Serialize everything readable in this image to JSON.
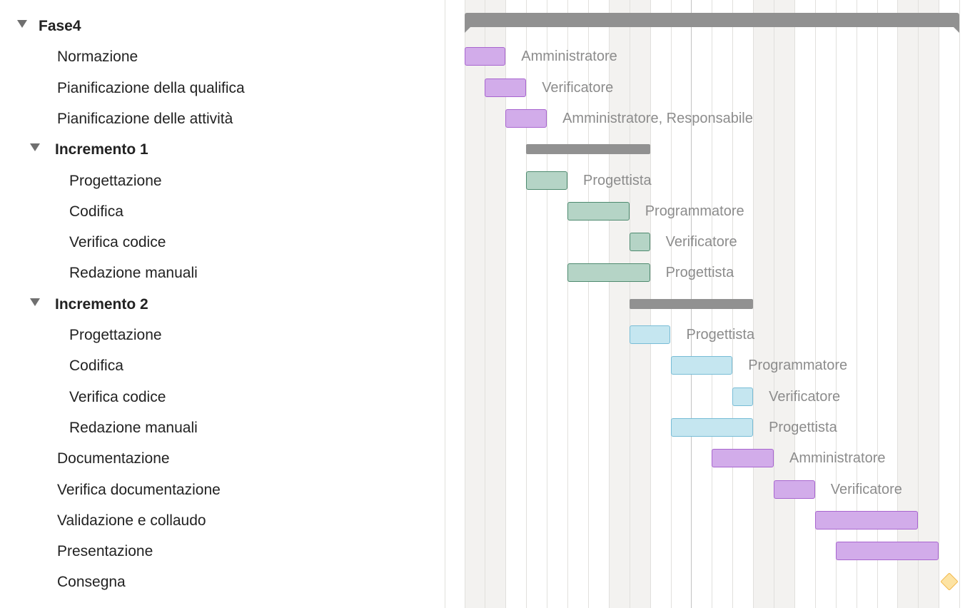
{
  "rows": [
    {
      "name": "Fase4",
      "level": 0,
      "group": true,
      "expanded": true
    },
    {
      "name": "Normazione",
      "level": 1,
      "group": false
    },
    {
      "name": "Pianificazione della qualifica",
      "level": 1,
      "group": false
    },
    {
      "name": "Pianificazione delle attività",
      "level": 1,
      "group": false
    },
    {
      "name": "Incremento 1",
      "level": 1,
      "group": true,
      "expanded": true
    },
    {
      "name": "Progettazione",
      "level": 2,
      "group": false
    },
    {
      "name": "Codifica",
      "level": 2,
      "group": false
    },
    {
      "name": "Verifica codice",
      "level": 2,
      "group": false
    },
    {
      "name": "Redazione manuali",
      "level": 2,
      "group": false
    },
    {
      "name": "Incremento 2",
      "level": 1,
      "group": true,
      "expanded": true
    },
    {
      "name": "Progettazione",
      "level": 2,
      "group": false
    },
    {
      "name": "Codifica",
      "level": 2,
      "group": false
    },
    {
      "name": "Verifica codice",
      "level": 2,
      "group": false
    },
    {
      "name": "Redazione manuali",
      "level": 2,
      "group": false
    },
    {
      "name": "Documentazione",
      "level": 1,
      "group": false
    },
    {
      "name": "Verifica documentazione",
      "level": 1,
      "group": false
    },
    {
      "name": "Validazione e collaudo",
      "level": 1,
      "group": false
    },
    {
      "name": "Presentazione",
      "level": 1,
      "group": false
    },
    {
      "name": "Consegna",
      "level": 1,
      "group": false
    }
  ],
  "timeline": {
    "unit": "day",
    "visible_days": 25,
    "weekend_columns": [
      0,
      1,
      7,
      8,
      14,
      15,
      21,
      22
    ],
    "highlight_column": 11
  },
  "gantt": [
    {
      "kind": "summary",
      "start": 0,
      "duration": 24,
      "size": "big"
    },
    {
      "kind": "task",
      "start": 0,
      "duration": 2,
      "color": "purple",
      "resources": "Amministratore"
    },
    {
      "kind": "task",
      "start": 1,
      "duration": 2,
      "color": "purple",
      "resources": "Verificatore"
    },
    {
      "kind": "task",
      "start": 2,
      "duration": 2,
      "color": "purple",
      "resources": "Amministratore, Responsabile"
    },
    {
      "kind": "summary",
      "start": 3,
      "duration": 6,
      "size": "small"
    },
    {
      "kind": "task",
      "start": 3,
      "duration": 2,
      "color": "green",
      "resources": "Progettista"
    },
    {
      "kind": "task",
      "start": 5,
      "duration": 3,
      "color": "green",
      "resources": "Programmatore"
    },
    {
      "kind": "task",
      "start": 8,
      "duration": 1,
      "color": "green",
      "resources": "Verificatore"
    },
    {
      "kind": "task",
      "start": 5,
      "duration": 4,
      "color": "green",
      "resources": "Progettista"
    },
    {
      "kind": "summary",
      "start": 8,
      "duration": 6,
      "size": "small"
    },
    {
      "kind": "task",
      "start": 8,
      "duration": 2,
      "color": "blue",
      "resources": "Progettista"
    },
    {
      "kind": "task",
      "start": 10,
      "duration": 3,
      "color": "blue",
      "resources": "Programmatore"
    },
    {
      "kind": "task",
      "start": 13,
      "duration": 1,
      "color": "blue",
      "resources": "Verificatore"
    },
    {
      "kind": "task",
      "start": 10,
      "duration": 4,
      "color": "blue",
      "resources": "Progettista"
    },
    {
      "kind": "task",
      "start": 12,
      "duration": 3,
      "color": "purple",
      "resources": "Amministratore"
    },
    {
      "kind": "task",
      "start": 15,
      "duration": 2,
      "color": "purple",
      "resources": "Verificatore"
    },
    {
      "kind": "task",
      "start": 17,
      "duration": 5,
      "color": "purple",
      "resources": ""
    },
    {
      "kind": "task",
      "start": 18,
      "duration": 5,
      "color": "purple",
      "resources": ""
    },
    {
      "kind": "milestone",
      "start": 23,
      "color": "orange"
    }
  ],
  "colors": {
    "purple": {
      "fill": "#d2acea",
      "border": "#a866cf"
    },
    "green": {
      "fill": "#b5d4c6",
      "border": "#4e8a6f"
    },
    "blue": {
      "fill": "#c5e6f0",
      "border": "#78bcd6"
    },
    "orange": {
      "fill": "#fde3a3",
      "border": "#f2b84c"
    },
    "summary": "#919191"
  }
}
